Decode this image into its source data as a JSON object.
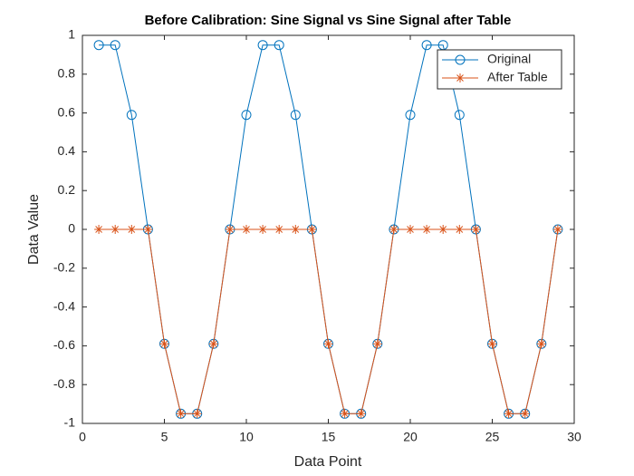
{
  "chart_data": {
    "type": "line",
    "title": "Before Calibration: Sine Signal vs Sine Signal after Table",
    "x_label": "Data Point",
    "y_label": "Data Value",
    "x": [
      1,
      2,
      3,
      4,
      5,
      6,
      7,
      8,
      9,
      10,
      11,
      12,
      13,
      14,
      15,
      16,
      17,
      18,
      19,
      20,
      21,
      22,
      23,
      24,
      25,
      26,
      27,
      28,
      29
    ],
    "series": [
      {
        "name": "Original",
        "color": "#0072bd",
        "marker": "circle",
        "values": [
          0.95,
          0.95,
          0.59,
          0,
          -0.59,
          -0.95,
          -0.95,
          -0.59,
          0,
          0.59,
          0.95,
          0.95,
          0.59,
          0,
          -0.59,
          -0.95,
          -0.95,
          -0.59,
          0,
          0.59,
          0.95,
          0.95,
          0.59,
          0,
          -0.59,
          -0.95,
          -0.95,
          -0.59,
          0
        ]
      },
      {
        "name": "After Table",
        "color": "#d95319",
        "marker": "asterisk",
        "values": [
          0,
          0,
          0,
          0,
          -0.59,
          -0.95,
          -0.95,
          -0.59,
          0,
          0,
          0,
          0,
          0,
          0,
          -0.59,
          -0.95,
          -0.95,
          -0.59,
          0,
          0,
          0,
          0,
          0,
          0,
          -0.59,
          -0.95,
          -0.95,
          -0.59,
          0
        ]
      }
    ],
    "xlim": [
      0,
      30
    ],
    "xticks": [
      0,
      5,
      10,
      15,
      20,
      25,
      30
    ],
    "ylim": [
      -1,
      1
    ],
    "yticks": [
      -1,
      -0.8,
      -0.6,
      -0.4,
      -0.2,
      0,
      0.2,
      0.4,
      0.6,
      0.8,
      1
    ],
    "grid": false,
    "legend": "top-right"
  }
}
